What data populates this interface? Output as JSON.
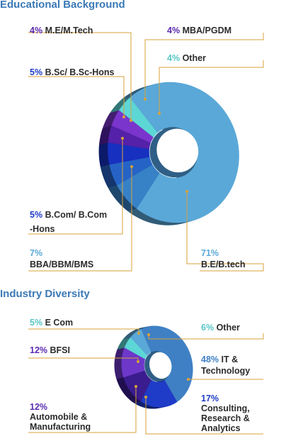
{
  "chart_data": [
    {
      "type": "pie",
      "title": "Educational Background",
      "slices": [
        {
          "label": "B.E/B.tech",
          "value": 71,
          "color": "#5aa8d8"
        },
        {
          "label": "BBA/BBM/BMS",
          "value": 7,
          "color": "#3781c7"
        },
        {
          "label": "B.Com/ B.Com -Hons",
          "value": 5,
          "color": "#2563c6"
        },
        {
          "label": "B.Sc/ B.Sc-Hons",
          "value": 5,
          "color": "#1730c0"
        },
        {
          "label": "M.E/M.Tech",
          "value": 4,
          "color": "#5421a8"
        },
        {
          "label": "MBA/PGDM",
          "value": 4,
          "color": "#7a35cc"
        },
        {
          "label": "Other",
          "value": 4,
          "color": "#5dd6d6"
        }
      ]
    },
    {
      "type": "pie",
      "title": "Industry Diversity",
      "slices": [
        {
          "label": "IT & Technology",
          "value": 48,
          "color": "#3f80c4"
        },
        {
          "label": "Consulting, Research & Analytics",
          "value": 17,
          "color": "#1f3cc8"
        },
        {
          "label": "Automobile & Manufacturing",
          "value": 12,
          "color": "#3a1c8e"
        },
        {
          "label": "BFSI",
          "value": 12,
          "color": "#6d37c9"
        },
        {
          "label": "E Com",
          "value": 5,
          "color": "#5dd6d6"
        },
        {
          "label": "Other",
          "value": 6,
          "color": "#5aa8d8"
        }
      ]
    }
  ],
  "titles": {
    "education": "Educational Background",
    "industry": "Industry Diversity"
  },
  "edu_labels": {
    "me": {
      "pct": "4%",
      "text": "M.E/M.Tech"
    },
    "mba": {
      "pct": "4%",
      "text": "MBA/PGDM"
    },
    "other": {
      "pct": "4%",
      "text": "Other"
    },
    "bsc": {
      "pct": "5%",
      "text": "B.Sc/ B.Sc-Hons"
    },
    "bcom": {
      "pct": "5%",
      "text1": "B.Com/ B.Com",
      "text2": "-Hons"
    },
    "bba": {
      "pct": "7%",
      "text": "BBA/BBM/BMS"
    },
    "be": {
      "pct": "71%",
      "text": "B.E/B.tech"
    }
  },
  "ind_labels": {
    "ecom": {
      "pct": "5%",
      "text": "E Com"
    },
    "other": {
      "pct": "6%",
      "text": "Other"
    },
    "bfsi": {
      "pct": "12%",
      "text": "BFSI"
    },
    "it": {
      "pct": "48%",
      "text1": "IT &",
      "text2": "Technology"
    },
    "auto": {
      "pct": "12%",
      "text1": "Automobile &",
      "text2": "Manufacturing"
    },
    "cons": {
      "pct": "17%",
      "text1": "Consulting,",
      "text2": "Research &",
      "text3": "Analytics"
    }
  },
  "colors": {
    "title": "#3a79b5",
    "leader": "#d8a23a",
    "text": "#2b2b2b",
    "pct_purple": "#5a2bb0",
    "pct_blue": "#1f3cc8",
    "pct_teal": "#58c6c6",
    "pct_light": "#5aa8d8"
  }
}
